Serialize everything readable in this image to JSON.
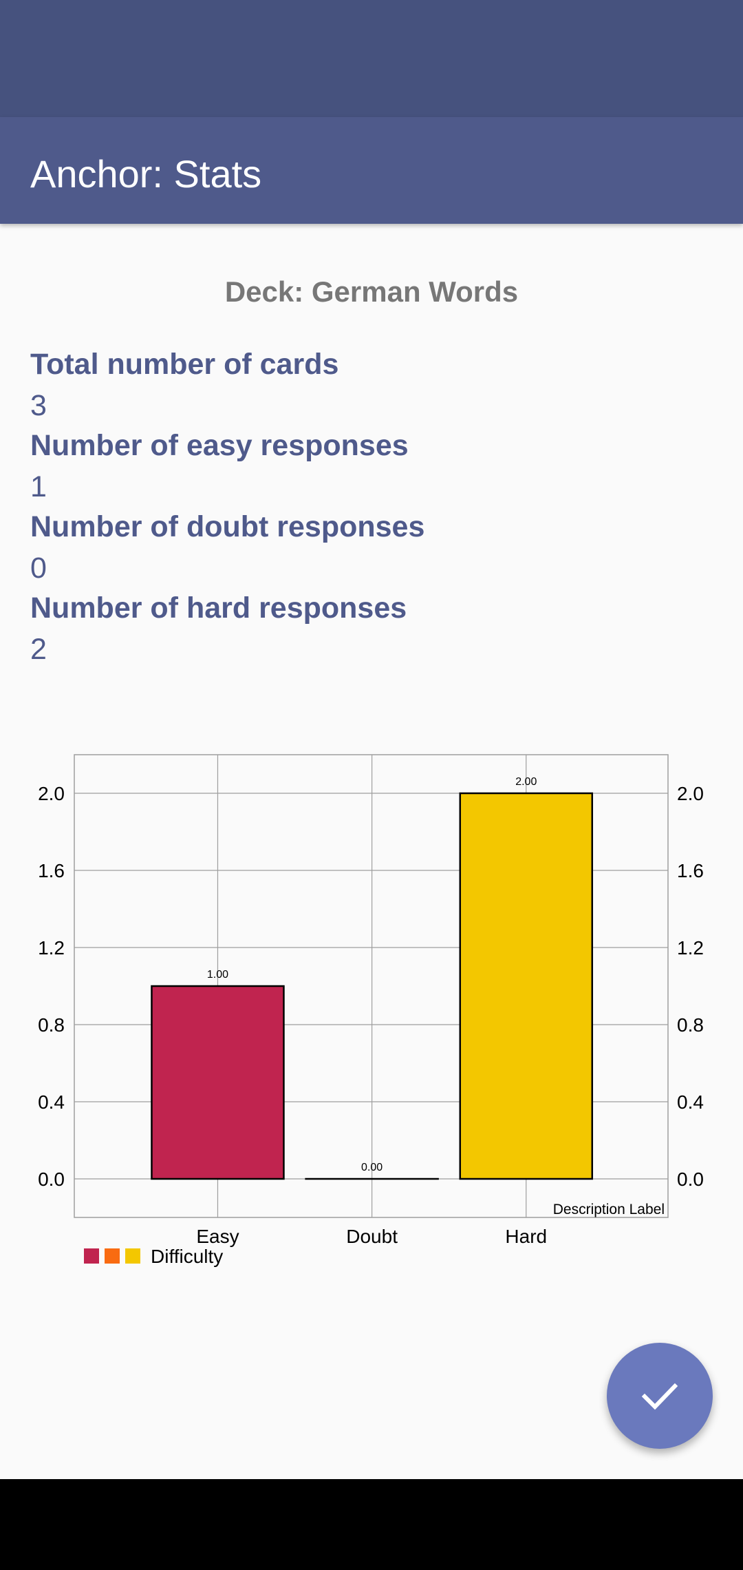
{
  "app_bar": {
    "title": "Anchor: Stats"
  },
  "deck": {
    "title": "Deck: German Words"
  },
  "stats": [
    {
      "label": "Total number of cards",
      "value": "3"
    },
    {
      "label": "Number of easy responses",
      "value": "1"
    },
    {
      "label": "Number of doubt responses",
      "value": "0"
    },
    {
      "label": "Number of hard responses",
      "value": "2"
    }
  ],
  "colors": {
    "status_bar": "#46527e",
    "app_bar": "#4f5a8b",
    "stat_text": "#4f5a8b",
    "fab": "#6a79bd"
  },
  "fab": {
    "icon": "check-icon"
  },
  "chart_data": {
    "type": "bar",
    "categories": [
      "Easy",
      "Doubt",
      "Hard"
    ],
    "series": [
      {
        "name": "Difficulty",
        "values": [
          1.0,
          0.0,
          2.0
        ],
        "colors": [
          "#c0244f",
          "#f96b11",
          "#f3c700"
        ]
      }
    ],
    "value_labels": [
      "1.00",
      "0.00",
      "2.00"
    ],
    "y_ticks": [
      "0.0",
      "0.4",
      "0.8",
      "1.2",
      "1.6",
      "2.0"
    ],
    "ylim": [
      -0.2,
      2.2
    ],
    "grid": true,
    "dual_y_axis": true,
    "description": "Description Label",
    "legend_position": "bottom-left"
  }
}
